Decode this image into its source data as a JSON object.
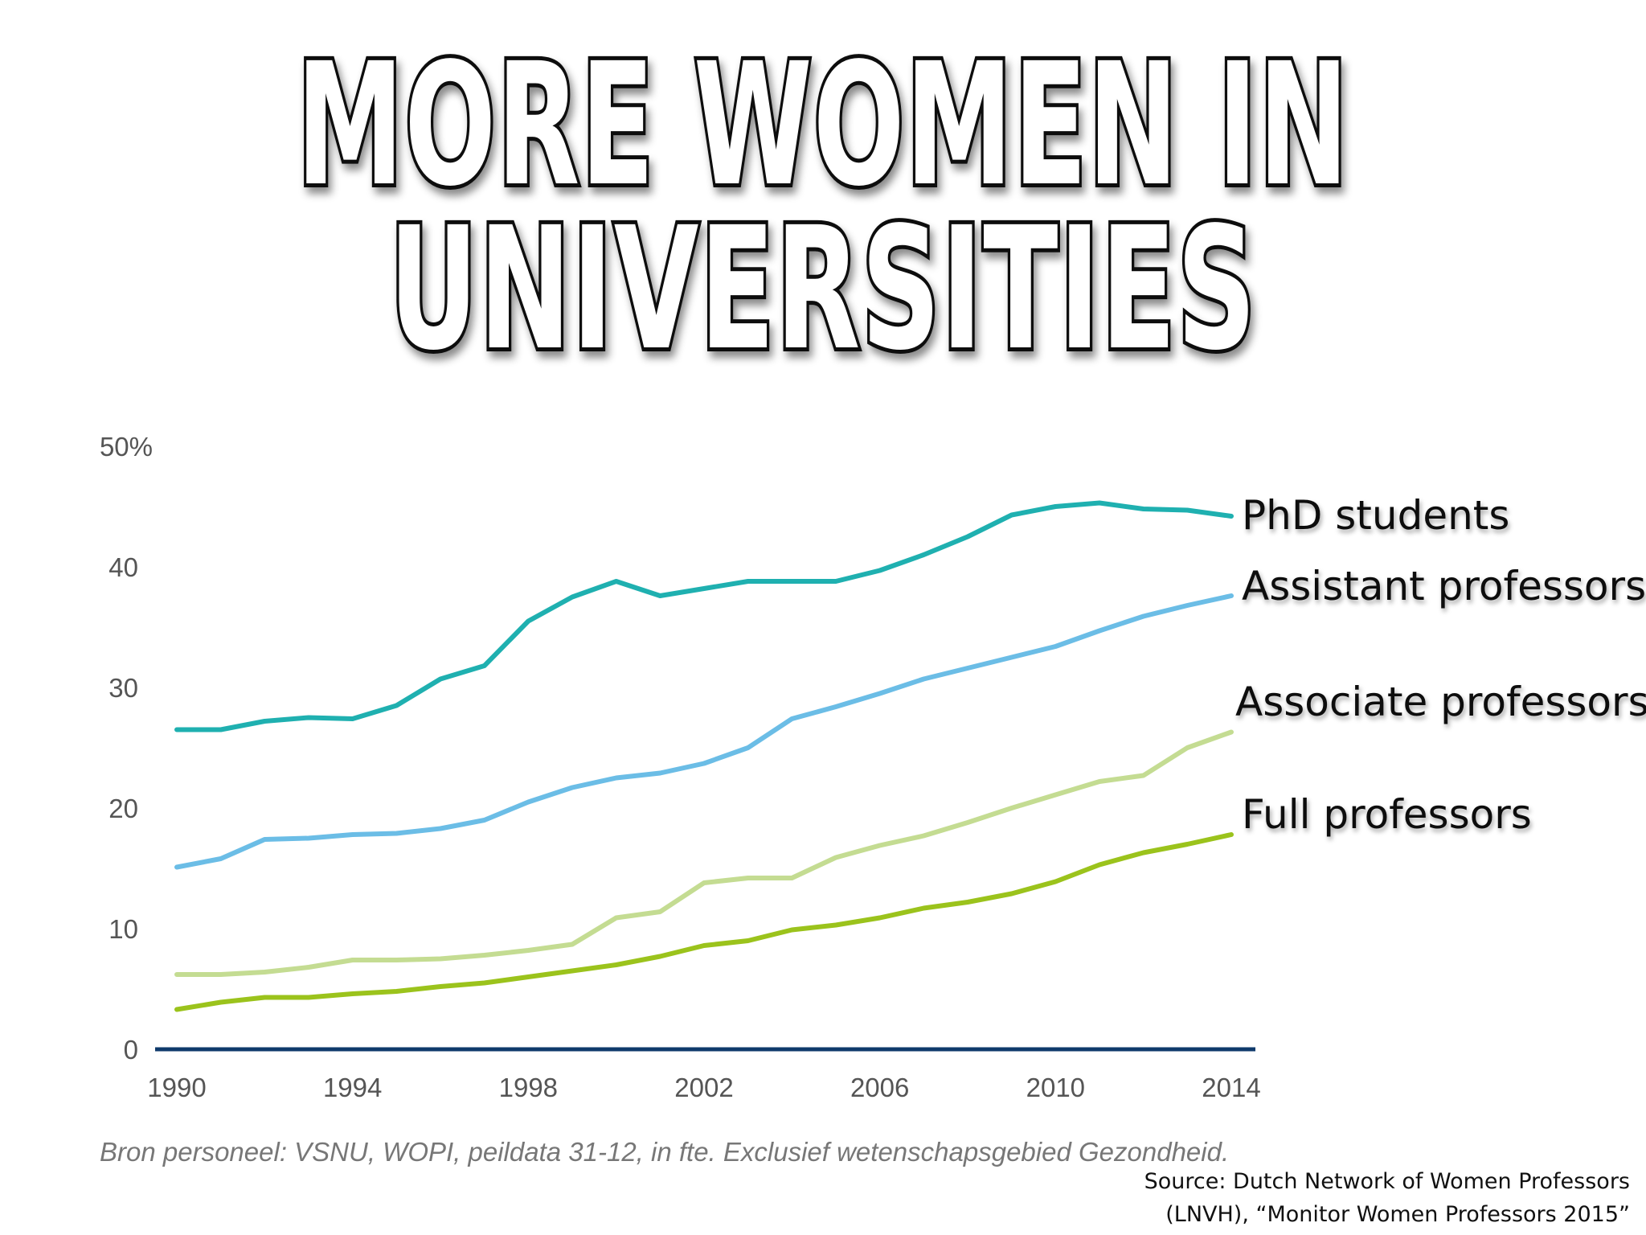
{
  "title": {
    "line1": "MORE WOMEN IN",
    "line2": "UNIVERSITIES"
  },
  "chart_data": {
    "type": "line",
    "x": [
      1990,
      1991,
      1992,
      1993,
      1994,
      1995,
      1996,
      1997,
      1998,
      1999,
      2000,
      2001,
      2002,
      2003,
      2004,
      2005,
      2006,
      2007,
      2008,
      2009,
      2010,
      2011,
      2012,
      2013,
      2014
    ],
    "xticks": [
      "1990",
      "1994",
      "1998",
      "2002",
      "2006",
      "2010",
      "2014"
    ],
    "yticks": [
      "0",
      "10",
      "20",
      "30",
      "40",
      "50%"
    ],
    "ylim": [
      0,
      50
    ],
    "xlim": [
      1990,
      2014
    ],
    "grid": false,
    "series": [
      {
        "name": "PhD students",
        "color": "#1fb0b0",
        "values": [
          26.5,
          26.5,
          27.2,
          27.5,
          27.4,
          28.5,
          30.7,
          31.8,
          35.5,
          37.5,
          38.8,
          37.6,
          38.2,
          38.8,
          38.8,
          38.8,
          39.7,
          41.0,
          42.5,
          44.3,
          45.0,
          45.3,
          44.8,
          44.7,
          44.2
        ]
      },
      {
        "name": "Assistant professors",
        "color": "#6bbde6",
        "values": [
          15.1,
          15.8,
          17.4,
          17.5,
          17.8,
          17.9,
          18.3,
          19.0,
          20.5,
          21.7,
          22.5,
          22.9,
          23.7,
          25.0,
          27.4,
          28.4,
          29.5,
          30.7,
          31.6,
          32.5,
          33.4,
          34.7,
          35.9,
          36.8,
          37.6
        ]
      },
      {
        "name": "Associate professors",
        "color": "#c4dc92",
        "values": [
          6.2,
          6.2,
          6.4,
          6.8,
          7.4,
          7.4,
          7.5,
          7.8,
          8.2,
          8.7,
          10.9,
          11.4,
          13.8,
          14.2,
          14.2,
          15.9,
          16.9,
          17.7,
          18.8,
          20.0,
          21.1,
          22.2,
          22.7,
          25.0,
          26.3
        ]
      },
      {
        "name": "Full professors",
        "color": "#9bc31c",
        "values": [
          3.3,
          3.9,
          4.3,
          4.3,
          4.6,
          4.8,
          5.2,
          5.5,
          6.0,
          6.5,
          7.0,
          7.7,
          8.6,
          9.0,
          9.9,
          10.3,
          10.9,
          11.7,
          12.2,
          12.9,
          13.9,
          15.3,
          16.3,
          17.0,
          17.8
        ]
      }
    ],
    "baseline_color": "#0f3a6b",
    "footnote": "Bron personeel: VSNU, WOPI, peildata 31-12, in fte. Exclusief wetenschapsgebied Gezondheid."
  },
  "source": {
    "line1": "Source: Dutch Network of Women Professors",
    "line2": "(LNVH), “Monitor Women Professors 2015”"
  }
}
